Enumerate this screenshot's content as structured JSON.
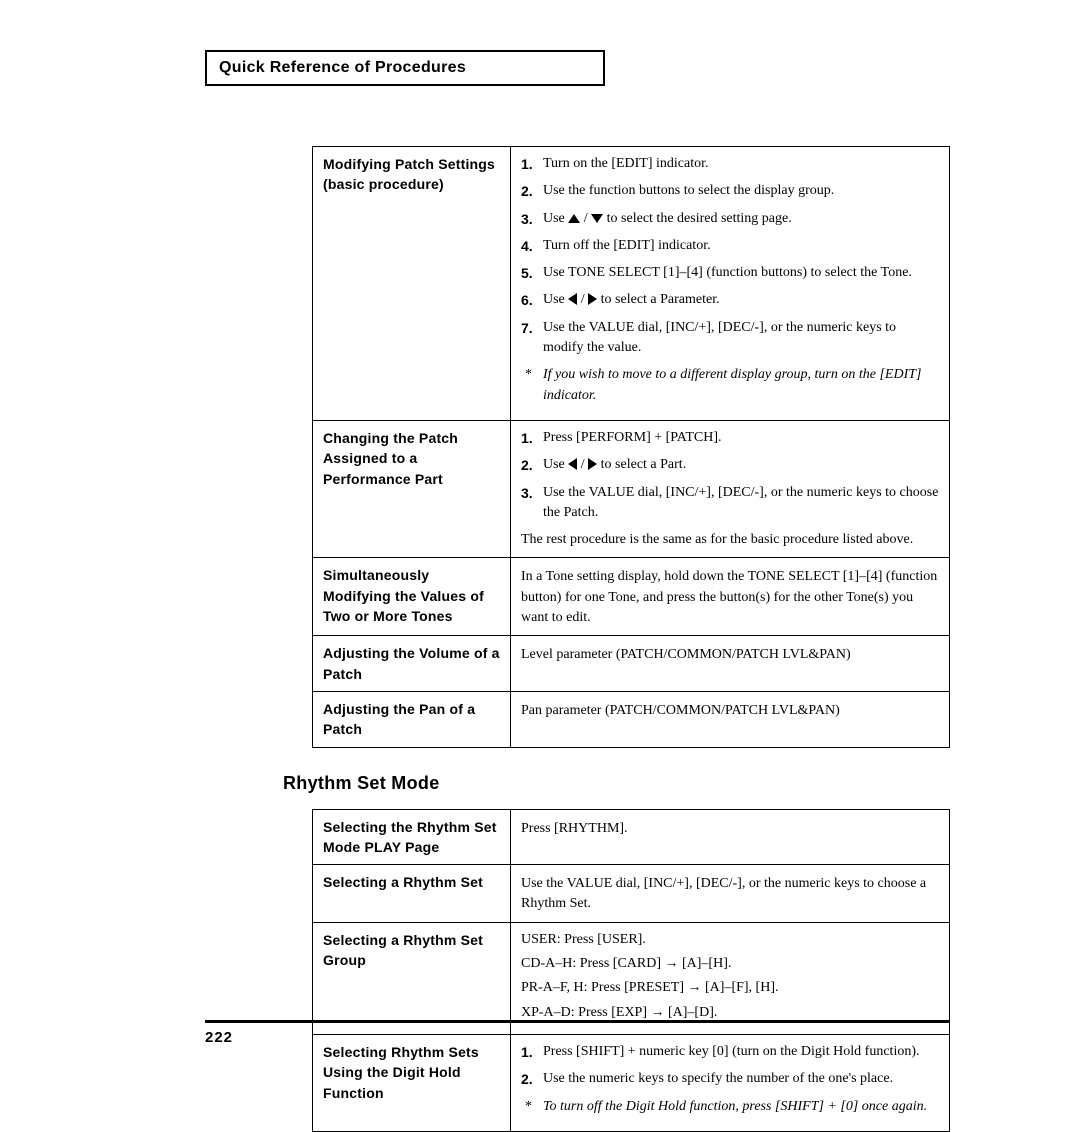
{
  "header": "Quick Reference of Procedures",
  "table1": {
    "rows": [
      {
        "left": "Modifying Patch Settings (basic procedure)",
        "steps": [
          {
            "n": "1.",
            "t": "Turn on the [EDIT] indicator."
          },
          {
            "n": "2.",
            "t": "Use the function buttons to select the display group."
          },
          {
            "n": "3.",
            "t": "Use __UP__ / __DOWN__ to select the desired setting page."
          },
          {
            "n": "4.",
            "t": "Turn off the [EDIT] indicator."
          },
          {
            "n": "5.",
            "t": "Use TONE SELECT [1]–[4] (function buttons) to select the Tone."
          },
          {
            "n": "6.",
            "t": "Use __LEFT__ / __RIGHT__ to select a Parameter."
          },
          {
            "n": "7.",
            "t": "Use the VALUE dial, [INC/+], [DEC/-], or the numeric keys to modify the value."
          },
          {
            "n": "*",
            "t": "If you wish to move to a different display group, turn on the [EDIT] indicator.",
            "italic": true
          }
        ]
      },
      {
        "left": "Changing the Patch Assigned to a Performance Part",
        "steps": [
          {
            "n": "1.",
            "t": "Press [PERFORM] + [PATCH]."
          },
          {
            "n": "2.",
            "t": "Use __LEFT__ / __RIGHT__ to select a Part."
          },
          {
            "n": "3.",
            "t": "Use the VALUE dial, [INC/+], [DEC/-], or the numeric keys to choose the Patch."
          }
        ],
        "plain": "The rest procedure is the same as for the basic procedure listed above."
      },
      {
        "left": "Simultaneously Modifying the Values of Two or More Tones",
        "plain": "In a Tone setting display, hold down the TONE SELECT [1]–[4] (function button) for one Tone, and press the button(s) for the other Tone(s) you want to edit."
      },
      {
        "left": "Adjusting the Volume of a Patch",
        "plain": "Level parameter (PATCH/COMMON/PATCH LVL&PAN)"
      },
      {
        "left": "Adjusting the Pan of a Patch",
        "plain": "Pan parameter (PATCH/COMMON/PATCH LVL&PAN)"
      }
    ]
  },
  "section2": "Rhythm Set Mode",
  "table2": {
    "rows": [
      {
        "left": "Selecting the Rhythm Set Mode PLAY Page",
        "plain": "Press [RHYTHM]."
      },
      {
        "left": "Selecting a Rhythm Set",
        "plain": "Use the VALUE dial, [INC/+], [DEC/-], or the numeric keys to choose a Rhythm Set."
      },
      {
        "left": "Selecting a Rhythm Set Group",
        "lines": [
          "USER: Press [USER].",
          "CD-A–H: Press [CARD] → [A]–[H].",
          "PR-A–F, H: Press [PRESET] → [A]–[F], [H].",
          "XP-A–D: Press [EXP] → [A]–[D]."
        ]
      },
      {
        "left": "Selecting Rhythm Sets Using the Digit Hold Function",
        "steps": [
          {
            "n": "1.",
            "t": "Press [SHIFT] + numeric key [0] (turn on the Digit Hold function)."
          },
          {
            "n": "2.",
            "t": "Use the numeric keys to specify the number of the one's place."
          },
          {
            "n": "*",
            "t": "To turn off the Digit Hold function, press [SHIFT] + [0] once again.",
            "italic": true
          }
        ]
      }
    ]
  },
  "pagenum": "222"
}
